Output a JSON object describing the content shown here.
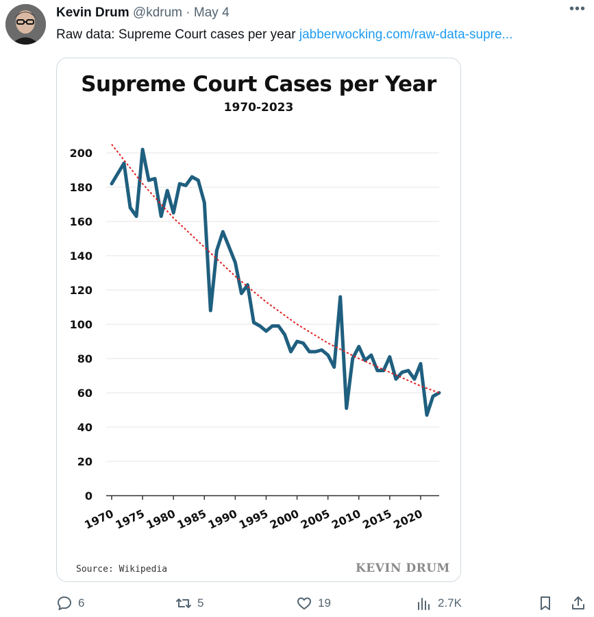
{
  "tweet": {
    "display_name": "Kevin Drum",
    "handle": "@kdrum",
    "separator": "·",
    "date": "May 4",
    "text": "Raw data: Supreme Court cases per year ",
    "link_text": "jabberwocking.com/raw-data-supre...",
    "more_icon": "more-icon"
  },
  "media": {
    "source_label": "Source: Wikipedia",
    "watermark": "KEVIN DRUM"
  },
  "chart_data": {
    "type": "line",
    "title": "Supreme Court Cases per Year",
    "subtitle": "1970-2023",
    "xlabel": "",
    "ylabel": "",
    "xlim": [
      1970,
      2023
    ],
    "ylim": [
      0,
      200
    ],
    "x_ticks": [
      1970,
      1975,
      1980,
      1985,
      1990,
      1995,
      2000,
      2005,
      2010,
      2015,
      2020
    ],
    "y_ticks": [
      0,
      20,
      40,
      60,
      80,
      100,
      120,
      140,
      160,
      180,
      200
    ],
    "grid": "horizontal",
    "series": [
      {
        "color": "#1f5f7f",
        "x": [
          1970,
          1971,
          1972,
          1973,
          1974,
          1975,
          1976,
          1977,
          1978,
          1979,
          1980,
          1981,
          1982,
          1983,
          1984,
          1985,
          1986,
          1987,
          1988,
          1989,
          1990,
          1991,
          1992,
          1993,
          1994,
          1995,
          1996,
          1997,
          1998,
          1999,
          2000,
          2001,
          2002,
          2003,
          2004,
          2005,
          2006,
          2007,
          2008,
          2009,
          2010,
          2011,
          2012,
          2013,
          2014,
          2015,
          2016,
          2017,
          2018,
          2019,
          2020,
          2021,
          2022,
          2023
        ],
        "y": [
          182,
          188,
          194,
          168,
          163,
          202,
          184,
          185,
          163,
          178,
          165,
          182,
          181,
          186,
          184,
          171,
          108,
          143,
          154,
          145,
          136,
          118,
          123,
          101,
          99,
          96,
          99,
          99,
          94,
          84,
          90,
          89,
          84,
          84,
          85,
          82,
          75,
          116,
          51,
          80,
          87,
          79,
          82,
          73,
          73,
          81,
          68,
          72,
          73,
          68,
          77,
          47,
          58,
          60
        ]
      },
      {
        "kind": "trendline",
        "color": "#e02020",
        "x": [
          1970,
          1975,
          1980,
          1985,
          1990,
          1995,
          2000,
          2005,
          2010,
          2015,
          2020,
          2023
        ],
        "y": [
          205,
          182,
          162,
          145,
          128,
          113,
          100,
          89,
          80,
          72,
          64,
          60
        ]
      }
    ]
  },
  "actions": {
    "reply_count": "6",
    "retweet_count": "5",
    "like_count": "19",
    "views_count": "2.7K"
  }
}
